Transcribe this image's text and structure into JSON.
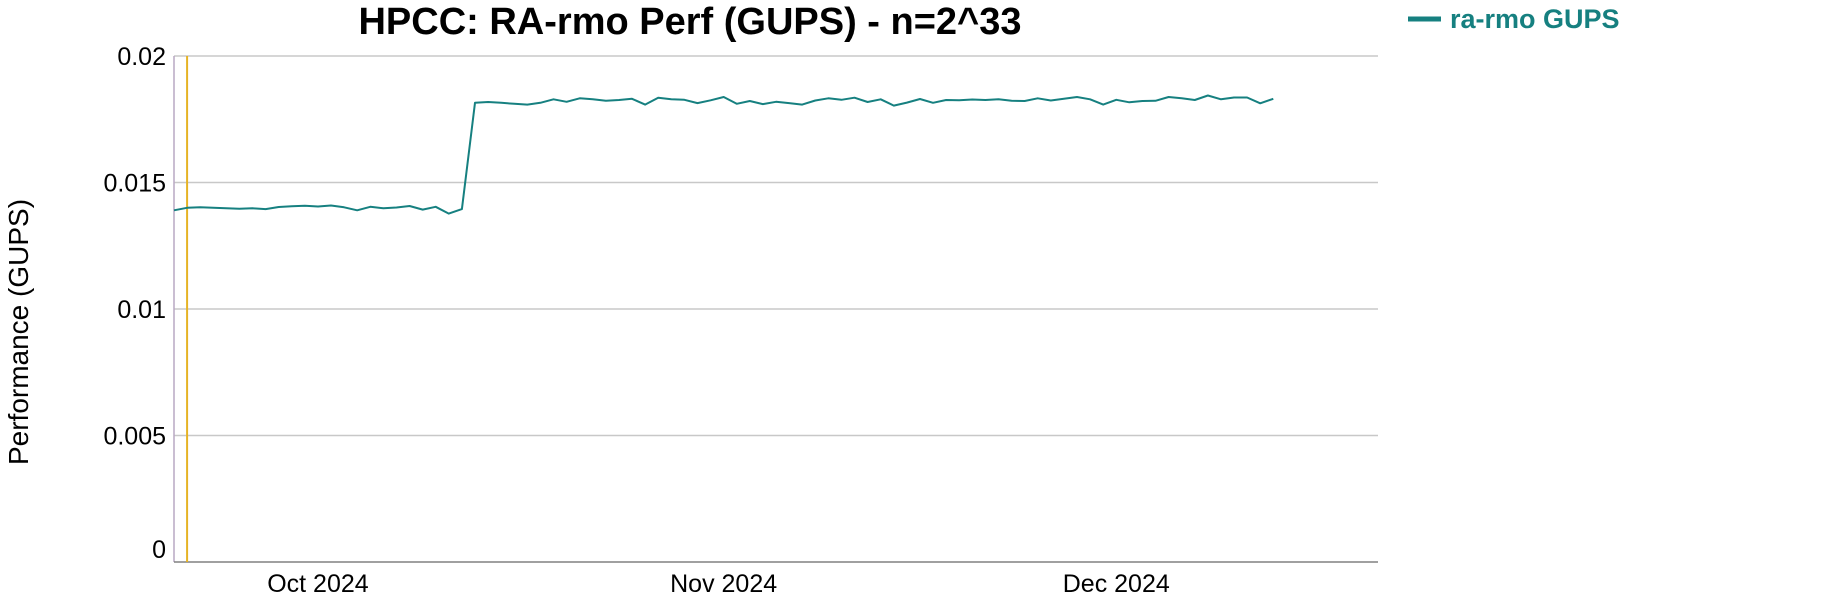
{
  "chart_data": {
    "type": "line",
    "title": "HPCC: RA-rmo Perf (GUPS) - n=2^33",
    "xlabel": "",
    "ylabel": "Performance (GUPS)",
    "ylim": [
      0,
      0.02
    ],
    "yticks": [
      0,
      0.005,
      0.01,
      0.015,
      0.02
    ],
    "ytick_labels": [
      "0",
      "0.005",
      "0.01",
      "0.015",
      "0.02"
    ],
    "xlim": [
      "2024-09-20",
      "2024-12-21"
    ],
    "xticks": [
      "2024-10-01",
      "2024-11-01",
      "2024-12-01"
    ],
    "xtick_labels": [
      "Oct 2024",
      "Nov 2024",
      "Dec 2024"
    ],
    "grid": "horizontal",
    "legend": "top-right",
    "marker_line": {
      "date": "2024-09-21",
      "color": "#e6b325"
    },
    "series": [
      {
        "name": "ra-rmo GUPS",
        "color": "#168080",
        "points": [
          [
            "2024-09-20",
            0.0139
          ],
          [
            "2024-09-21",
            0.014
          ],
          [
            "2024-09-22",
            0.01402
          ],
          [
            "2024-09-24",
            0.01398
          ],
          [
            "2024-09-25",
            0.01396
          ],
          [
            "2024-09-26",
            0.01398
          ],
          [
            "2024-09-27",
            0.01395
          ],
          [
            "2024-09-28",
            0.01403
          ],
          [
            "2024-09-29",
            0.01406
          ],
          [
            "2024-09-30",
            0.01408
          ],
          [
            "2024-10-01",
            0.01405
          ],
          [
            "2024-10-02",
            0.01409
          ],
          [
            "2024-10-03",
            0.01402
          ],
          [
            "2024-10-04",
            0.0139
          ],
          [
            "2024-10-05",
            0.01404
          ],
          [
            "2024-10-06",
            0.01398
          ],
          [
            "2024-10-07",
            0.01401
          ],
          [
            "2024-10-08",
            0.01407
          ],
          [
            "2024-10-09",
            0.01393
          ],
          [
            "2024-10-10",
            0.01404
          ],
          [
            "2024-10-11",
            0.01377
          ],
          [
            "2024-10-12",
            0.01395
          ],
          [
            "2024-10-13",
            0.01815
          ],
          [
            "2024-10-14",
            0.01818
          ],
          [
            "2024-10-15",
            0.01815
          ],
          [
            "2024-10-16",
            0.01811
          ],
          [
            "2024-10-17",
            0.01808
          ],
          [
            "2024-10-18",
            0.01815
          ],
          [
            "2024-10-19",
            0.01829
          ],
          [
            "2024-10-20",
            0.01819
          ],
          [
            "2024-10-21",
            0.01833
          ],
          [
            "2024-10-22",
            0.01829
          ],
          [
            "2024-10-23",
            0.01823
          ],
          [
            "2024-10-24",
            0.01826
          ],
          [
            "2024-10-25",
            0.01831
          ],
          [
            "2024-10-26",
            0.01808
          ],
          [
            "2024-10-27",
            0.01835
          ],
          [
            "2024-10-28",
            0.01829
          ],
          [
            "2024-10-29",
            0.01827
          ],
          [
            "2024-10-30",
            0.01814
          ],
          [
            "2024-10-31",
            0.01825
          ],
          [
            "2024-11-01",
            0.01838
          ],
          [
            "2024-11-02",
            0.01811
          ],
          [
            "2024-11-03",
            0.01822
          ],
          [
            "2024-11-04",
            0.0181
          ],
          [
            "2024-11-05",
            0.01819
          ],
          [
            "2024-11-06",
            0.01814
          ],
          [
            "2024-11-07",
            0.01808
          ],
          [
            "2024-11-08",
            0.01824
          ],
          [
            "2024-11-09",
            0.01833
          ],
          [
            "2024-11-10",
            0.01827
          ],
          [
            "2024-11-11",
            0.01835
          ],
          [
            "2024-11-12",
            0.01818
          ],
          [
            "2024-11-13",
            0.01829
          ],
          [
            "2024-11-14",
            0.01804
          ],
          [
            "2024-11-15",
            0.01816
          ],
          [
            "2024-11-16",
            0.0183
          ],
          [
            "2024-11-17",
            0.01815
          ],
          [
            "2024-11-18",
            0.01826
          ],
          [
            "2024-11-19",
            0.01825
          ],
          [
            "2024-11-20",
            0.01828
          ],
          [
            "2024-11-21",
            0.01826
          ],
          [
            "2024-11-22",
            0.01829
          ],
          [
            "2024-11-23",
            0.01823
          ],
          [
            "2024-11-24",
            0.01822
          ],
          [
            "2024-11-25",
            0.01833
          ],
          [
            "2024-11-26",
            0.01824
          ],
          [
            "2024-11-27",
            0.01831
          ],
          [
            "2024-11-28",
            0.01838
          ],
          [
            "2024-11-29",
            0.01829
          ],
          [
            "2024-11-30",
            0.01808
          ],
          [
            "2024-12-01",
            0.01827
          ],
          [
            "2024-12-02",
            0.01817
          ],
          [
            "2024-12-03",
            0.01822
          ],
          [
            "2024-12-04",
            0.01823
          ],
          [
            "2024-12-05",
            0.01838
          ],
          [
            "2024-12-06",
            0.01833
          ],
          [
            "2024-12-07",
            0.01826
          ],
          [
            "2024-12-08",
            0.01844
          ],
          [
            "2024-12-09",
            0.01829
          ],
          [
            "2024-12-10",
            0.01836
          ],
          [
            "2024-12-11",
            0.01836
          ],
          [
            "2024-12-12",
            0.01813
          ],
          [
            "2024-12-13",
            0.01831
          ]
        ]
      }
    ]
  }
}
